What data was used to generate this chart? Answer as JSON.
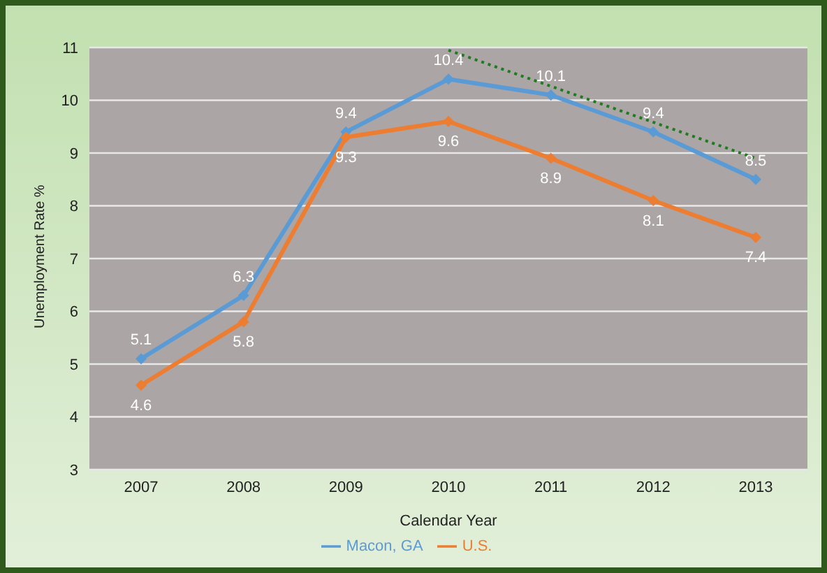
{
  "chart_data": {
    "type": "line",
    "xlabel": "Calendar Year",
    "ylabel": "Unemployment  Rate %",
    "categories": [
      "2007",
      "2008",
      "2009",
      "2010",
      "2011",
      "2012",
      "2013"
    ],
    "series": [
      {
        "name": "Macon, GA",
        "color": "#5b9bd5",
        "values": [
          5.1,
          6.3,
          9.4,
          10.4,
          10.1,
          9.4,
          8.5
        ],
        "value_labels": [
          "5.1",
          "6.3",
          "9.4",
          "10.4",
          "10.1",
          "9.4",
          "8.5"
        ]
      },
      {
        "name": "U.S.",
        "color": "#ed7d31",
        "values": [
          4.6,
          5.8,
          9.3,
          9.6,
          8.9,
          8.1,
          7.4
        ],
        "value_labels": [
          "4.6",
          "5.8",
          "9.3",
          "9.6",
          "8.9",
          "8.1",
          "7.4"
        ]
      },
      {
        "type": "line",
        "color": "#1e7b1e",
        "values": [
          null,
          null,
          null,
          10.95,
          null,
          null,
          8.9
        ],
        "line_style": "dotted",
        "marker": "none"
      }
    ],
    "ylim": [
      3,
      11
    ],
    "yticks": [
      3,
      4,
      5,
      6,
      7,
      8,
      9,
      10,
      11
    ],
    "grid": "y",
    "legend": "bottom",
    "marker": "diamond"
  }
}
